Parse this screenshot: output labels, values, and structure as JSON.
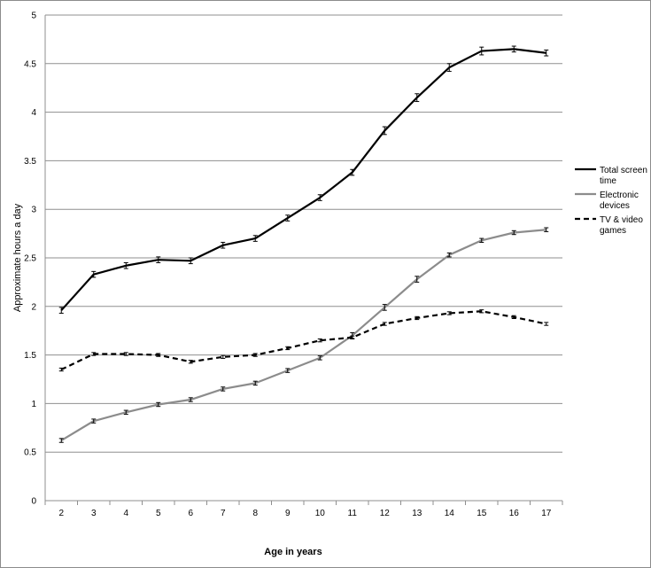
{
  "chart_data": {
    "type": "line",
    "xlabel": "Age in years",
    "ylabel": "Approximate hours a day",
    "x": [
      2,
      3,
      4,
      5,
      6,
      7,
      8,
      9,
      10,
      11,
      12,
      13,
      14,
      15,
      16,
      17
    ],
    "ylim": [
      0,
      5
    ],
    "yticks": [
      "0",
      "0.5",
      "1",
      "1.5",
      "2",
      "2.5",
      "3",
      "3.5",
      "4",
      "4.5",
      "5"
    ],
    "grid": true,
    "legend_position": "right",
    "series": [
      {
        "name": "Total screen time",
        "style": "solid",
        "color": "#000000",
        "values": [
          1.96,
          2.33,
          2.42,
          2.48,
          2.47,
          2.63,
          2.7,
          2.91,
          3.12,
          3.38,
          3.81,
          4.15,
          4.46,
          4.63,
          4.65,
          4.61
        ],
        "error": [
          0.03,
          0.03,
          0.03,
          0.03,
          0.03,
          0.03,
          0.03,
          0.03,
          0.03,
          0.03,
          0.04,
          0.04,
          0.04,
          0.04,
          0.03,
          0.03
        ]
      },
      {
        "name": "Electronic devices",
        "style": "solid",
        "color": "#8c8c8c",
        "values": [
          0.62,
          0.82,
          0.91,
          0.99,
          1.04,
          1.15,
          1.21,
          1.34,
          1.47,
          1.7,
          1.99,
          2.28,
          2.53,
          2.68,
          2.76,
          2.79
        ],
        "error": [
          0.02,
          0.02,
          0.02,
          0.02,
          0.02,
          0.02,
          0.02,
          0.02,
          0.02,
          0.03,
          0.03,
          0.03,
          0.02,
          0.02,
          0.02,
          0.02
        ]
      },
      {
        "name": "TV & video games",
        "style": "dashed",
        "color": "#000000",
        "values": [
          1.35,
          1.51,
          1.51,
          1.5,
          1.43,
          1.48,
          1.5,
          1.57,
          1.65,
          1.68,
          1.82,
          1.88,
          1.93,
          1.95,
          1.89,
          1.82
        ],
        "error": [
          0.015,
          0.015,
          0.015,
          0.015,
          0.015,
          0.015,
          0.015,
          0.015,
          0.015,
          0.015,
          0.015,
          0.015,
          0.015,
          0.015,
          0.015,
          0.015
        ]
      }
    ],
    "legend_lines": [
      [
        "Total screen",
        "time"
      ],
      [
        "Electronic",
        "devices"
      ],
      [
        "TV & video",
        "games"
      ]
    ]
  }
}
